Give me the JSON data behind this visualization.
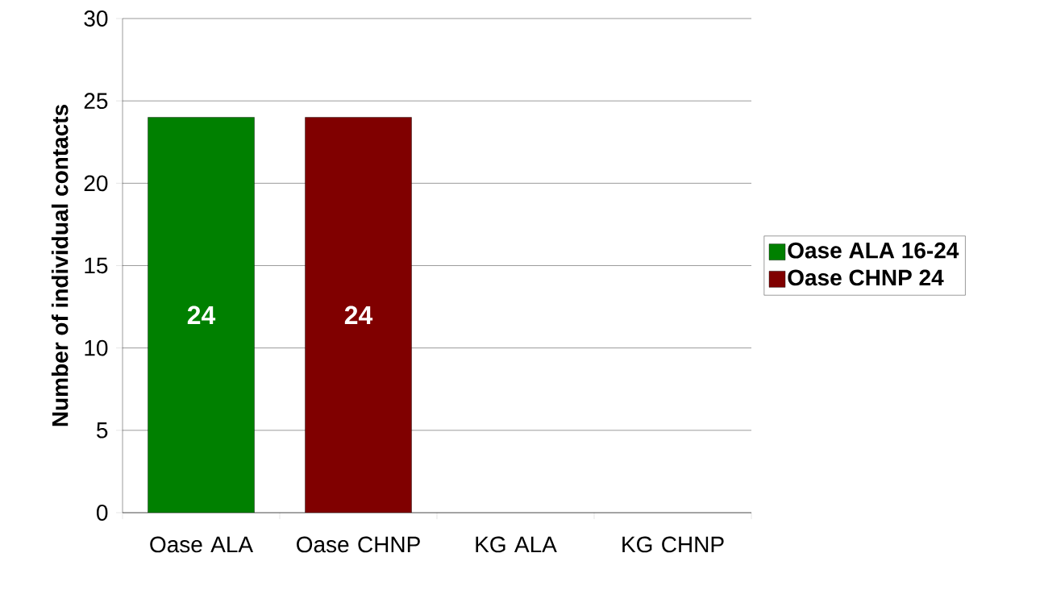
{
  "chart_data": {
    "type": "bar",
    "ylabel": "Number of individual contacts",
    "categories": [
      "Oase ALA",
      "Oase CHNP",
      "KG ALA",
      "KG CHNP"
    ],
    "series": [
      {
        "name": "Oase ALA 16-24",
        "color": "#008000",
        "values": [
          24,
          null,
          null,
          null
        ]
      },
      {
        "name": "Oase CHNP 24",
        "color": "#800000",
        "values": [
          null,
          24,
          null,
          null
        ]
      }
    ],
    "ylim": [
      0,
      30
    ],
    "yticks": [
      0,
      5,
      10,
      15,
      20,
      25,
      30
    ],
    "grid": "y",
    "legend": "right",
    "data_labels": true
  }
}
